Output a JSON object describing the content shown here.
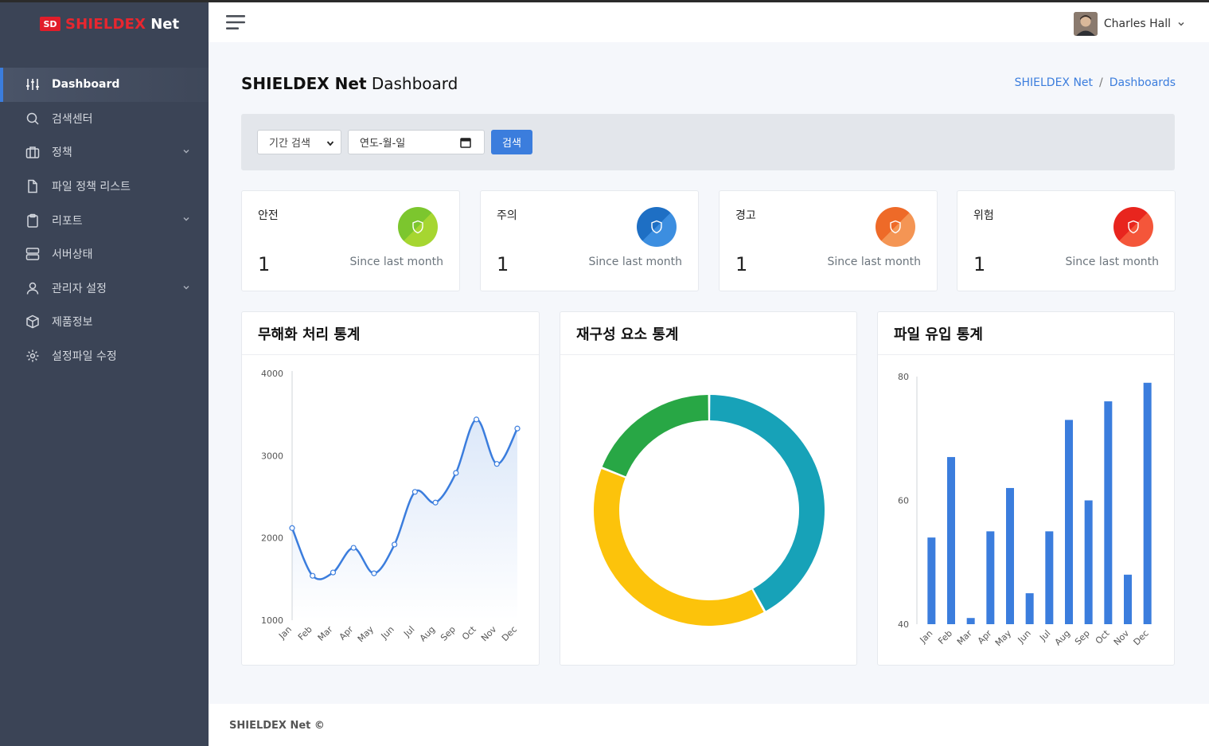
{
  "brand": {
    "logo": "SD",
    "name_red": "SHIELDEX",
    "name_white": "Net"
  },
  "sidebar": {
    "items": [
      {
        "label": "Dashboard",
        "icon": "sliders-icon",
        "active": true,
        "has_chevron": false
      },
      {
        "label": "검색센터",
        "icon": "search-icon",
        "active": false,
        "has_chevron": false
      },
      {
        "label": "정책",
        "icon": "briefcase-icon",
        "active": false,
        "has_chevron": true
      },
      {
        "label": "파일 정책 리스트",
        "icon": "file-icon",
        "active": false,
        "has_chevron": false
      },
      {
        "label": "리포트",
        "icon": "clipboard-icon",
        "active": false,
        "has_chevron": true
      },
      {
        "label": "서버상태",
        "icon": "server-icon",
        "active": false,
        "has_chevron": false
      },
      {
        "label": "관리자 설정",
        "icon": "user-icon",
        "active": false,
        "has_chevron": true
      },
      {
        "label": "제품정보",
        "icon": "box-icon",
        "active": false,
        "has_chevron": false
      },
      {
        "label": "설정파일 수정",
        "icon": "gear-icon",
        "active": false,
        "has_chevron": false
      }
    ]
  },
  "header": {
    "user_name": "Charles Hall"
  },
  "page": {
    "title_bold": "SHIELDEX Net",
    "title_rest": "Dashboard",
    "breadcrumb": [
      "SHIELDEX Net",
      "Dashboards"
    ]
  },
  "filter": {
    "period_select": "기간 검색",
    "date_placeholder": "연도-월-일",
    "search_label": "검색"
  },
  "stat_cards": [
    {
      "label": "안전",
      "value": "1",
      "since": "Since last month",
      "color_a": "#7cc62e",
      "color_b": "#a6d631"
    },
    {
      "label": "주의",
      "value": "1",
      "since": "Since last month",
      "color_a": "#1e6fc4",
      "color_b": "#3c8ee0"
    },
    {
      "label": "경고",
      "value": "1",
      "since": "Since last month",
      "color_a": "#ee6a28",
      "color_b": "#f49554"
    },
    {
      "label": "위험",
      "value": "1",
      "since": "Since last month",
      "color_a": "#e8251e",
      "color_b": "#f4563a"
    }
  ],
  "panels": {
    "line_title": "무해화 처리 통계",
    "donut_title": "재구성 요소 통계",
    "bar_title": "파일 유입 통계"
  },
  "chart_data": [
    {
      "type": "line",
      "title": "무해화 처리 통계",
      "categories": [
        "Jan",
        "Feb",
        "Mar",
        "Apr",
        "May",
        "Jun",
        "Jul",
        "Aug",
        "Sep",
        "Oct",
        "Nov",
        "Dec"
      ],
      "values": [
        2120,
        1540,
        1580,
        1880,
        1570,
        1920,
        2560,
        2430,
        2790,
        3440,
        2900,
        3330
      ],
      "ylim": [
        1000,
        4000
      ],
      "yticks": [
        "1000",
        "2000",
        "3000",
        "4000"
      ],
      "color": "#3b7ddd"
    },
    {
      "type": "pie",
      "title": "재구성 요소 통계",
      "values": [
        42,
        39,
        19
      ],
      "colors": [
        "#17a2b8",
        "#fcc30b",
        "#28a745"
      ]
    },
    {
      "type": "bar",
      "title": "파일 유입 통계",
      "categories": [
        "Jan",
        "Feb",
        "Mar",
        "Apr",
        "May",
        "Jun",
        "Jul",
        "Aug",
        "Sep",
        "Oct",
        "Nov",
        "Dec"
      ],
      "values": [
        54,
        67,
        41,
        55,
        62,
        45,
        55,
        73,
        60,
        76,
        48,
        79
      ],
      "ylim": [
        40,
        80
      ],
      "yticks": [
        "40",
        "60",
        "80"
      ],
      "color": "#3b7ddd"
    }
  ],
  "footer": {
    "text": "SHIELDEX Net ©"
  }
}
